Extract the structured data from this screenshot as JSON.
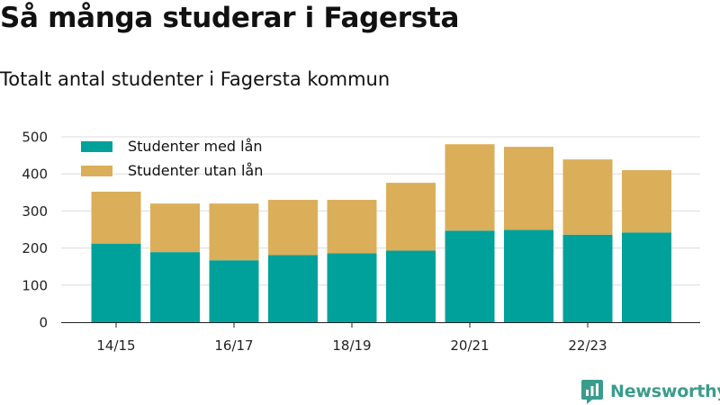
{
  "title": "Så många studerar i Fagersta",
  "subtitle": "Totalt antal studenter i Fagersta kommun",
  "brand": {
    "name": "Newsworthy",
    "icon": "newsworthy-logo-icon",
    "color": "#3a9c8c"
  },
  "chart_data": {
    "type": "bar",
    "stacked": true,
    "categories": [
      "14/15",
      "15/16",
      "16/17",
      "17/18",
      "18/19",
      "19/20",
      "20/21",
      "21/22",
      "22/23",
      "23/24"
    ],
    "tick_labels": [
      "14/15",
      "16/17",
      "18/19",
      "20/21",
      "22/23"
    ],
    "series": [
      {
        "name": "Studenter med lån",
        "color": "#00a19a",
        "values": [
          212,
          189,
          167,
          181,
          186,
          193,
          247,
          249,
          236,
          242
        ]
      },
      {
        "name": "Studenter utan lån",
        "color": "#dbae5a",
        "values": [
          140,
          131,
          153,
          149,
          144,
          183,
          233,
          224,
          203,
          168
        ]
      }
    ],
    "yticks": [
      0,
      100,
      200,
      300,
      400,
      500
    ],
    "ylim": [
      0,
      500
    ],
    "grid": true,
    "legend_position": "top-left"
  }
}
